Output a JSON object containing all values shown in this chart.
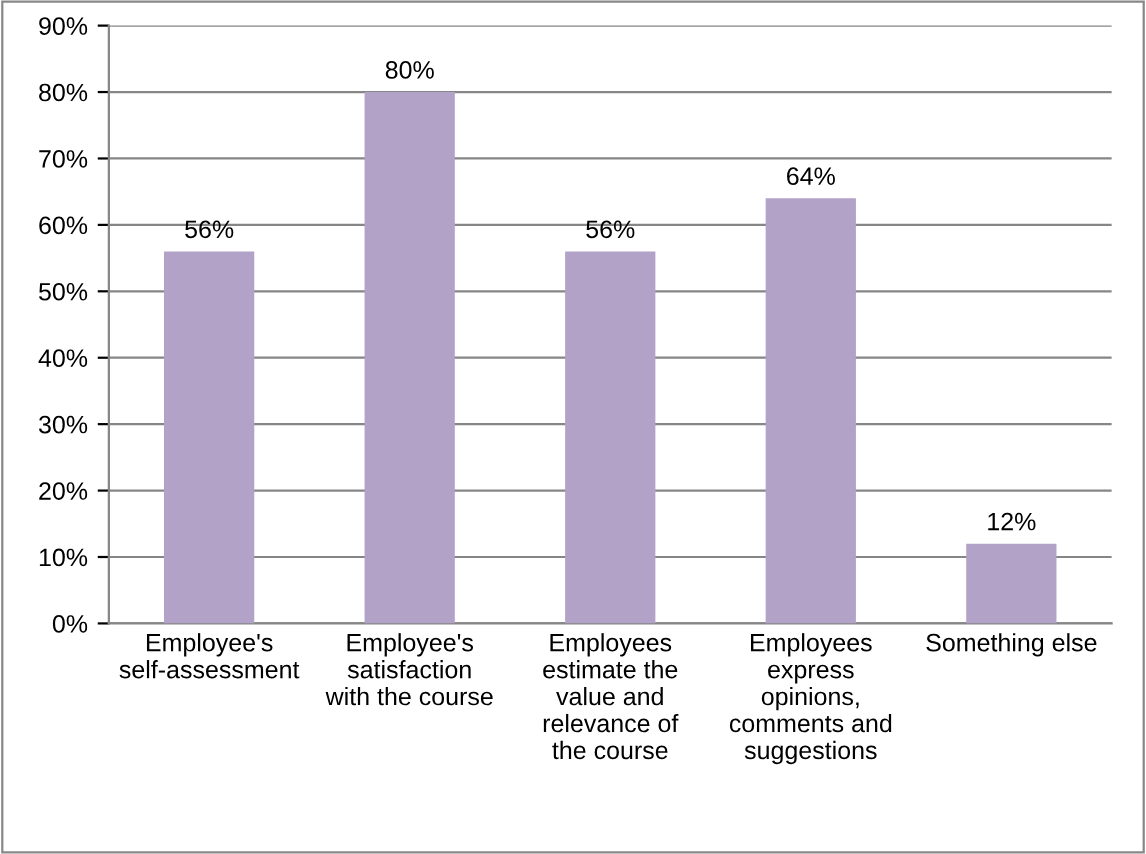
{
  "chart_data": {
    "type": "bar",
    "categories": [
      "Employee's\nself-assessment",
      "Employee's\nsatisfaction\nwith the course",
      "Employees\nestimate the\nvalue and\nrelevance of\nthe course",
      "Employees\nexpress\nopinions,\ncomments and\nsuggestions",
      "Something else"
    ],
    "values": [
      56,
      80,
      56,
      64,
      12
    ],
    "value_labels": [
      "56%",
      "80%",
      "56%",
      "64%",
      "12%"
    ],
    "color": "#b3a2c7",
    "ylim": [
      0,
      90
    ],
    "yticks": [
      {
        "value": 0,
        "label": "0%"
      },
      {
        "value": 10,
        "label": "10%"
      },
      {
        "value": 20,
        "label": "20%"
      },
      {
        "value": 30,
        "label": "30%"
      },
      {
        "value": 40,
        "label": "40%"
      },
      {
        "value": 50,
        "label": "50%"
      },
      {
        "value": 60,
        "label": "60%"
      },
      {
        "value": 70,
        "label": "70%"
      },
      {
        "value": 80,
        "label": "80%"
      },
      {
        "value": 90,
        "label": "90%"
      }
    ],
    "grid": "y"
  }
}
